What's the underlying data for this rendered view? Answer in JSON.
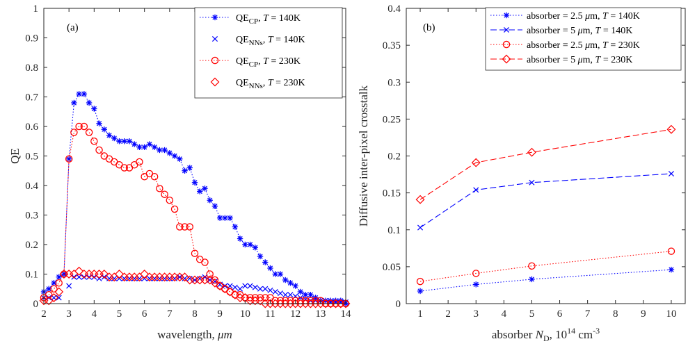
{
  "chart_data": [
    {
      "type": "line",
      "panel_label": "(a)",
      "xlabel": "wavelength,",
      "xlabel_unit": "μm",
      "ylabel": "QE",
      "xlim": [
        2,
        14
      ],
      "ylim": [
        0,
        1
      ],
      "xticks": [
        2,
        3,
        4,
        5,
        6,
        7,
        8,
        9,
        10,
        11,
        12,
        13,
        14
      ],
      "yticks": [
        0,
        0.1,
        0.2,
        0.3,
        0.4,
        0.5,
        0.6,
        0.7,
        0.8,
        0.9,
        1
      ],
      "ytick_labels": [
        "0",
        "0.1",
        "0.2",
        "0.3",
        "0.4",
        "0.5",
        "0.6",
        "0.7",
        "0.8",
        "0.9",
        "1"
      ],
      "grid": false,
      "legend_position": "top-right",
      "series": [
        {
          "name": "QE_CP, T = 140K",
          "legend": {
            "main": "QE",
            "sub": "CP",
            "tail": ", ",
            "t_var": "T",
            "rest": " = 140K"
          },
          "color": "#0000ff",
          "marker": "star",
          "dash": "1.5,2.5",
          "x": [
            2.0,
            2.2,
            2.4,
            2.6,
            2.8,
            3.0,
            3.2,
            3.4,
            3.6,
            3.8,
            4.0,
            4.2,
            4.4,
            4.6,
            4.8,
            5.0,
            5.2,
            5.4,
            5.6,
            5.8,
            6.0,
            6.2,
            6.4,
            6.6,
            6.8,
            7.0,
            7.2,
            7.4,
            7.6,
            7.8,
            8.0,
            8.2,
            8.4,
            8.6,
            8.8,
            9.0,
            9.2,
            9.4,
            9.6,
            9.8,
            10.0,
            10.2,
            10.4,
            10.6,
            10.8,
            11.0,
            11.2,
            11.4,
            11.6,
            11.8,
            12.0,
            12.2,
            12.4,
            12.6,
            12.8,
            13.0,
            13.2,
            13.4,
            13.6,
            13.8,
            14.0
          ],
          "y": [
            0.04,
            0.05,
            0.07,
            0.09,
            0.1,
            0.49,
            0.68,
            0.71,
            0.71,
            0.68,
            0.66,
            0.61,
            0.59,
            0.57,
            0.56,
            0.55,
            0.55,
            0.55,
            0.54,
            0.53,
            0.53,
            0.54,
            0.53,
            0.52,
            0.52,
            0.51,
            0.5,
            0.49,
            0.45,
            0.46,
            0.41,
            0.38,
            0.39,
            0.35,
            0.33,
            0.29,
            0.29,
            0.29,
            0.26,
            0.22,
            0.2,
            0.2,
            0.19,
            0.16,
            0.14,
            0.12,
            0.1,
            0.1,
            0.08,
            0.07,
            0.06,
            0.04,
            0.03,
            0.03,
            0.02,
            0.01,
            0.01,
            0.01,
            0.01,
            0.01,
            0.0
          ]
        },
        {
          "name": "QE_NNs, T = 140K",
          "legend": {
            "main": "QE",
            "sub": "NNs",
            "tail": ", ",
            "t_var": "T",
            "rest": " = 140K"
          },
          "color": "#0000ff",
          "marker": "x",
          "dash": "none",
          "x": [
            2.0,
            2.2,
            2.4,
            2.6,
            2.8,
            3.0,
            3.2,
            3.4,
            3.6,
            3.8,
            4.0,
            4.2,
            4.4,
            4.6,
            4.8,
            5.0,
            5.2,
            5.4,
            5.6,
            5.8,
            6.0,
            6.2,
            6.4,
            6.6,
            6.8,
            7.0,
            7.2,
            7.4,
            7.6,
            7.8,
            8.0,
            8.2,
            8.4,
            8.6,
            8.8,
            9.0,
            9.2,
            9.4,
            9.6,
            9.8,
            10.0,
            10.2,
            10.4,
            10.6,
            10.8,
            11.0,
            11.2,
            11.4,
            11.6,
            11.8,
            12.0,
            12.2,
            12.4,
            12.6,
            12.8,
            13.0,
            13.2,
            13.4,
            13.6,
            13.8,
            14.0
          ],
          "y": [
            0.02,
            0.02,
            0.02,
            0.02,
            0.1,
            0.06,
            0.09,
            0.09,
            0.09,
            0.09,
            0.09,
            0.085,
            0.09,
            0.085,
            0.085,
            0.085,
            0.085,
            0.085,
            0.085,
            0.085,
            0.085,
            0.085,
            0.085,
            0.085,
            0.085,
            0.085,
            0.085,
            0.09,
            0.085,
            0.085,
            0.08,
            0.085,
            0.09,
            0.08,
            0.075,
            0.065,
            0.06,
            0.06,
            0.055,
            0.05,
            0.06,
            0.06,
            0.055,
            0.05,
            0.05,
            0.045,
            0.04,
            0.035,
            0.03,
            0.03,
            0.025,
            0.02,
            0.015,
            0.01,
            0.01,
            0.01,
            0.01,
            0.005,
            0.005,
            0.005,
            0.005
          ]
        },
        {
          "name": "QE_CP, T = 230K",
          "legend": {
            "main": "QE",
            "sub": "CP",
            "tail": ", ",
            "t_var": "T",
            "rest": " = 230K"
          },
          "color": "#ff0000",
          "marker": "circle",
          "dash": "1.5,2.5",
          "x": [
            2.0,
            2.2,
            2.4,
            2.6,
            2.8,
            3.0,
            3.2,
            3.4,
            3.6,
            3.8,
            4.0,
            4.2,
            4.4,
            4.6,
            4.8,
            5.0,
            5.2,
            5.4,
            5.6,
            5.8,
            6.0,
            6.2,
            6.4,
            6.6,
            6.8,
            7.0,
            7.2,
            7.4,
            7.6,
            7.8,
            8.0,
            8.2,
            8.4,
            8.6,
            8.8,
            9.0,
            9.2,
            9.4,
            9.6,
            9.8,
            10.0,
            10.2,
            10.4,
            10.6,
            10.8,
            11.0,
            11.2,
            11.4,
            11.6,
            11.8,
            12.0,
            12.2,
            12.4,
            12.6,
            12.8,
            13.0,
            13.2,
            13.4,
            13.6,
            13.8,
            14.0
          ],
          "y": [
            0.02,
            0.03,
            0.05,
            0.07,
            0.1,
            0.49,
            0.58,
            0.6,
            0.6,
            0.58,
            0.55,
            0.52,
            0.5,
            0.49,
            0.48,
            0.47,
            0.46,
            0.46,
            0.47,
            0.48,
            0.43,
            0.44,
            0.43,
            0.39,
            0.37,
            0.35,
            0.32,
            0.26,
            0.26,
            0.26,
            0.17,
            0.15,
            0.14,
            0.1,
            0.08,
            0.06,
            0.05,
            0.04,
            0.03,
            0.03,
            0.02,
            0.02,
            0.02,
            0.02,
            0.02,
            0.02,
            0.01,
            0.01,
            0.01,
            0.01,
            0.01,
            0.01,
            0.01,
            0.01,
            0.01,
            0.01,
            0.0,
            0.0,
            0.0,
            0.0,
            0.0
          ]
        },
        {
          "name": "QE_NNs, T = 230K",
          "legend": {
            "main": "QE",
            "sub": "NNs",
            "tail": ", ",
            "t_var": "T",
            "rest": " = 230K"
          },
          "color": "#ff0000",
          "marker": "diamond",
          "dash": "none",
          "x": [
            2.0,
            2.2,
            2.4,
            2.6,
            2.8,
            3.0,
            3.2,
            3.4,
            3.6,
            3.8,
            4.0,
            4.2,
            4.4,
            4.6,
            4.8,
            5.0,
            5.2,
            5.4,
            5.6,
            5.8,
            6.0,
            6.2,
            6.4,
            6.6,
            6.8,
            7.0,
            7.2,
            7.4,
            7.6,
            7.8,
            8.0,
            8.2,
            8.4,
            8.6,
            8.8,
            9.0,
            9.2,
            9.4,
            9.6,
            9.8,
            10.0,
            10.2,
            10.4,
            10.6,
            10.8,
            11.0,
            11.2,
            11.4,
            11.6,
            11.8,
            12.0,
            12.2,
            12.4,
            12.6,
            12.8,
            13.0,
            13.2,
            13.4,
            13.6,
            13.8,
            14.0
          ],
          "y": [
            0.01,
            0.01,
            0.02,
            0.04,
            0.1,
            0.1,
            0.1,
            0.11,
            0.1,
            0.1,
            0.1,
            0.1,
            0.1,
            0.09,
            0.09,
            0.1,
            0.09,
            0.09,
            0.09,
            0.09,
            0.1,
            0.09,
            0.09,
            0.09,
            0.09,
            0.09,
            0.09,
            0.09,
            0.09,
            0.08,
            0.08,
            0.08,
            0.08,
            0.08,
            0.07,
            0.06,
            0.05,
            0.04,
            0.03,
            0.02,
            0.02,
            0.01,
            0.01,
            0.01,
            0.0,
            0.0,
            0.0,
            0.0,
            0.0,
            0.0,
            0.0,
            0.0,
            0.0,
            0.0,
            0.0,
            0.0,
            0.0,
            0.0,
            0.0,
            0.0,
            0.0
          ]
        }
      ]
    },
    {
      "type": "line",
      "panel_label": "(b)",
      "xlabel": "absorber N",
      "xlabel_sub": "D",
      "xlabel_tail": ", 10",
      "xlabel_sup": "14",
      "xlabel_unit": " cm",
      "xlabel_unit_sup": "-3",
      "ylabel": "Diffusive inter-pixel crosstalk",
      "xlim": [
        0.5,
        10.5
      ],
      "ylim": [
        0,
        0.4
      ],
      "xticks": [
        1,
        2,
        3,
        4,
        5,
        6,
        7,
        8,
        9,
        10
      ],
      "yticks": [
        0,
        0.05,
        0.1,
        0.15,
        0.2,
        0.25,
        0.3,
        0.35,
        0.4
      ],
      "ytick_labels": [
        "0",
        "0.05",
        "0.1",
        "0.15",
        "0.2",
        "0.25",
        "0.3",
        "0.35",
        "0.4"
      ],
      "grid": false,
      "legend_position": "top-right",
      "series": [
        {
          "name": "absorber = 2.5 μm, T = 140K",
          "legend": {
            "main": "absorber = 2.5 ",
            "mu": "μ",
            "unit": "m, ",
            "t_var": "T",
            "rest": " = 140K"
          },
          "color": "#0000ff",
          "marker": "star",
          "dash": "1.5,2.5",
          "x": [
            1,
            3,
            5,
            10
          ],
          "y": [
            0.017,
            0.026,
            0.033,
            0.046
          ]
        },
        {
          "name": "absorber = 5 μm, T = 140K",
          "legend": {
            "main": "absorber = 5 ",
            "mu": "μ",
            "unit": "m,  ",
            "t_var": "T",
            "rest": " = 140K"
          },
          "color": "#0000ff",
          "marker": "x",
          "dash": "9,4",
          "x": [
            1,
            3,
            5,
            10
          ],
          "y": [
            0.103,
            0.154,
            0.164,
            0.176
          ]
        },
        {
          "name": "absorber = 2.5 μm, T = 230K",
          "legend": {
            "main": "absorber = 2.5 ",
            "mu": "μ",
            "unit": "m, ",
            "t_var": "T",
            "rest": " = 230K"
          },
          "color": "#ff0000",
          "marker": "circle",
          "dash": "1.5,2.5",
          "x": [
            1,
            3,
            5,
            10
          ],
          "y": [
            0.03,
            0.041,
            0.051,
            0.071
          ]
        },
        {
          "name": "absorber = 5 μm, T = 230K",
          "legend": {
            "main": "absorber = 5 ",
            "mu": "μ",
            "unit": "m, ",
            "t_var": "T",
            "rest": " = 230K"
          },
          "color": "#ff0000",
          "marker": "diamond",
          "dash": "9,4",
          "x": [
            1,
            3,
            5,
            10
          ],
          "y": [
            0.141,
            0.191,
            0.205,
            0.236
          ]
        }
      ]
    }
  ]
}
